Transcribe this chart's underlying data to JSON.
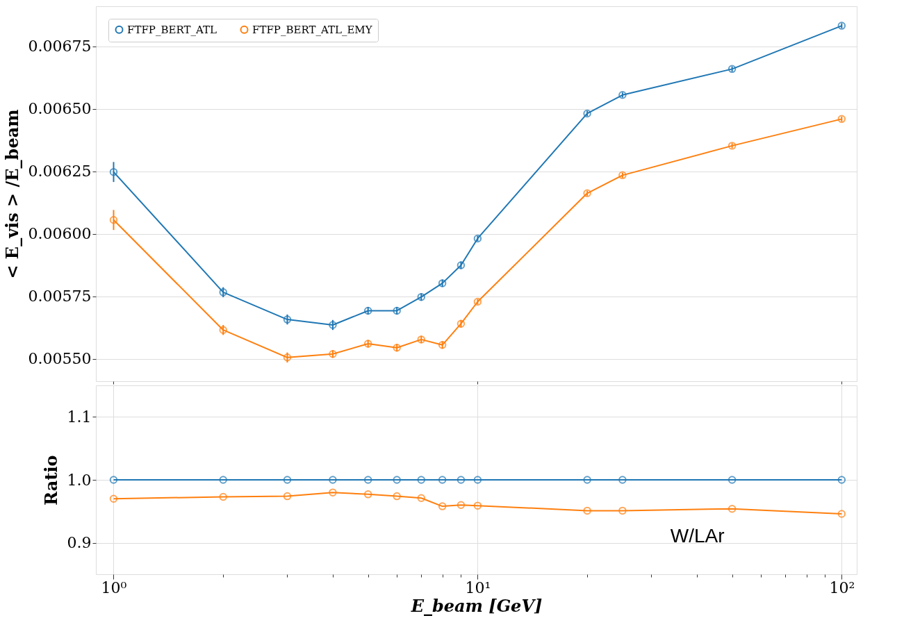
{
  "chart_data": [
    {
      "type": "line",
      "ylabel": "< E_vis > /E_beam",
      "log": "x",
      "grid": "y",
      "legend": "top left",
      "marker": "circle",
      "tick_labels": "y",
      "x": [
        1,
        2,
        3,
        4,
        5,
        6,
        7,
        8,
        9,
        10,
        20,
        25,
        50,
        100
      ],
      "xlim": [
        0.894,
        110
      ],
      "xticks": [
        {
          "value": 1,
          "label": null
        },
        {
          "value": 10,
          "label": null
        },
        {
          "value": 100,
          "label": null
        }
      ],
      "ylim": [
        0.00541,
        0.00691
      ],
      "yticks": [
        {
          "value": 0.0055,
          "label": "0.00550"
        },
        {
          "value": 0.00575,
          "label": "0.00575"
        },
        {
          "value": 0.006,
          "label": "0.00600"
        },
        {
          "value": 0.00625,
          "label": "0.00625"
        },
        {
          "value": 0.0065,
          "label": "0.00650"
        },
        {
          "value": 0.00675,
          "label": "0.00675"
        }
      ],
      "series": [
        {
          "name": "FTFP_BERT_ATL",
          "color": "#1f77b4",
          "values": [
            0.006247,
            0.005766,
            0.005657,
            0.005635,
            0.005692,
            0.005692,
            0.005747,
            0.005802,
            0.005874,
            0.005981,
            0.006481,
            0.006555,
            0.006659,
            0.006832
          ],
          "errors": [
            4e-05,
            2e-05,
            2e-05,
            2e-05,
            1.5e-05,
            1.5e-05,
            1.5e-05,
            1.5e-05,
            1.5e-05,
            1e-05,
            1e-05,
            1e-05,
            1e-05,
            1e-05
          ]
        },
        {
          "name": "FTFP_BERT_ATL_EMY",
          "color": "#ff7f0e",
          "values": [
            0.006055,
            0.005615,
            0.005505,
            0.005519,
            0.00556,
            0.005544,
            0.005577,
            0.005555,
            0.00564,
            0.005728,
            0.006162,
            0.006234,
            0.006352,
            0.006459
          ],
          "errors": [
            4e-05,
            2e-05,
            2e-05,
            1.5e-05,
            1.5e-05,
            1.5e-05,
            1.5e-05,
            1.5e-05,
            1.5e-05,
            1e-05,
            1e-05,
            1e-05,
            1e-05,
            1e-05
          ]
        }
      ]
    },
    {
      "type": "line",
      "ylabel": "Ratio",
      "xlabel": "E_beam [GeV]",
      "log": "x",
      "grid": true,
      "marker": "circle",
      "x": [
        1,
        2,
        3,
        4,
        5,
        6,
        7,
        8,
        9,
        10,
        20,
        25,
        50,
        100
      ],
      "xlim": [
        0.894,
        110
      ],
      "xticks": [
        {
          "value": 1,
          "label": "10⁰"
        },
        {
          "value": 2,
          "label": null
        },
        {
          "value": 3,
          "label": null
        },
        {
          "value": 4,
          "label": null
        },
        {
          "value": 5,
          "label": null
        },
        {
          "value": 6,
          "label": null
        },
        {
          "value": 7,
          "label": null
        },
        {
          "value": 8,
          "label": null
        },
        {
          "value": 9,
          "label": null
        },
        {
          "value": 10,
          "label": "10¹"
        },
        {
          "value": 20,
          "label": null
        },
        {
          "value": 30,
          "label": null
        },
        {
          "value": 40,
          "label": null
        },
        {
          "value": 50,
          "label": null
        },
        {
          "value": 60,
          "label": null
        },
        {
          "value": 70,
          "label": null
        },
        {
          "value": 80,
          "label": null
        },
        {
          "value": 90,
          "label": null
        },
        {
          "value": 100,
          "label": "10²"
        }
      ],
      "ylim": [
        0.85,
        1.15
      ],
      "yticks": [
        {
          "value": 0.9,
          "label": "0.9"
        },
        {
          "value": 1,
          "label": "1.0"
        },
        {
          "value": 1.1,
          "label": "1.1"
        }
      ],
      "annotations": [
        "W/LAr"
      ],
      "series": [
        {
          "color": "#1f77b4",
          "values": [
            1,
            1,
            1,
            1,
            1,
            1,
            1,
            1,
            1,
            1,
            1,
            1,
            1,
            1
          ]
        },
        {
          "color": "#ff7f0e",
          "values": [
            0.97,
            0.973,
            0.974,
            0.98,
            0.977,
            0.974,
            0.971,
            0.958,
            0.96,
            0.959,
            0.951,
            0.951,
            0.954,
            0.946
          ]
        }
      ]
    }
  ]
}
